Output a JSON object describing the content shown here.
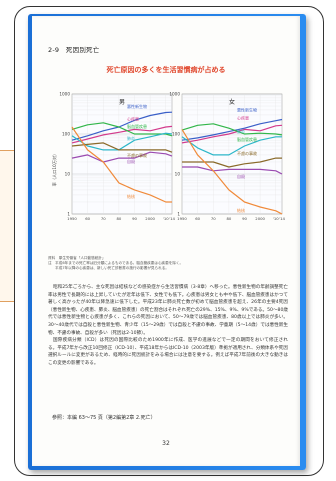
{
  "section_title": "2-9　死因別死亡",
  "chart_title": "死亡原因の多くを生活習慣病が占める",
  "chart_data": [
    {
      "type": "line",
      "title": "男",
      "x": [
        1950,
        1960,
        1970,
        1980,
        1990,
        2000,
        2010,
        2014
      ],
      "xticks": [
        "1950",
        "60",
        "70",
        "80",
        "90",
        "2000",
        "'10",
        "'14"
      ],
      "ylim": [
        1,
        1000
      ],
      "log_scale": true,
      "yticks": [
        "1000",
        "100",
        "10",
        "1"
      ],
      "ylabel": "率（人口10万対）",
      "series": [
        {
          "name": "悪性新生物",
          "color": "#3a5fc8",
          "values": [
            70,
            90,
            120,
            150,
            220,
            290,
            345,
            350
          ]
        },
        {
          "name": "心疾患",
          "color": "#d33a8c",
          "values": [
            60,
            75,
            95,
            110,
            130,
            120,
            150,
            155
          ]
        },
        {
          "name": "脳血管疾患",
          "color": "#32b64a",
          "values": [
            130,
            170,
            190,
            150,
            100,
            100,
            100,
            90
          ]
        },
        {
          "name": "肺炎",
          "color": "#2cb6c8",
          "values": [
            90,
            50,
            40,
            40,
            70,
            85,
            105,
            100
          ]
        },
        {
          "name": "不慮の事故",
          "color": "#8a6a2a",
          "values": [
            50,
            55,
            60,
            40,
            40,
            40,
            40,
            35
          ]
        },
        {
          "name": "自殺",
          "color": "#9a4ab0",
          "values": [
            25,
            30,
            20,
            25,
            25,
            35,
            32,
            28
          ]
        },
        {
          "name": "結核",
          "color": "#f08a3a",
          "values": [
            150,
            40,
            20,
            6,
            4,
            3,
            2,
            2
          ]
        }
      ]
    },
    {
      "type": "line",
      "title": "女",
      "x": [
        1950,
        1960,
        1970,
        1980,
        1990,
        2000,
        2010,
        2014
      ],
      "xticks": [
        "1950",
        "60",
        "70",
        "80",
        "90",
        "2000",
        "'10",
        "'14"
      ],
      "ylim": [
        1,
        1000
      ],
      "log_scale": true,
      "yticks": [
        "1000",
        "100",
        "10",
        "1"
      ],
      "series": [
        {
          "name": "悪性新生物",
          "color": "#3a5fc8",
          "values": [
            70,
            80,
            95,
            115,
            140,
            180,
            215,
            230
          ]
        },
        {
          "name": "心疾患",
          "color": "#d33a8c",
          "values": [
            60,
            70,
            85,
            100,
            130,
            120,
            160,
            165
          ]
        },
        {
          "name": "脳血管疾患",
          "color": "#32b64a",
          "values": [
            125,
            165,
            180,
            140,
            100,
            105,
            100,
            95
          ]
        },
        {
          "name": "肺炎",
          "color": "#2cb6c8",
          "values": [
            85,
            45,
            30,
            30,
            50,
            70,
            85,
            85
          ]
        },
        {
          "name": "不慮の事故",
          "color": "#8a6a2a",
          "values": [
            20,
            20,
            20,
            15,
            18,
            20,
            25,
            25
          ]
        },
        {
          "name": "自殺",
          "color": "#9a4ab0",
          "values": [
            15,
            15,
            12,
            13,
            13,
            13,
            12,
            10
          ]
        },
        {
          "name": "結核",
          "color": "#f08a3a",
          "values": [
            130,
            30,
            12,
            4,
            2,
            1.5,
            1.2,
            1
          ]
        }
      ]
    }
  ],
  "chart_labels_male": [
    "悪性新生物",
    "心疾患",
    "脳血管疾患",
    "肺炎",
    "不慮の事故",
    "自殺",
    "結核"
  ],
  "notes": [
    "資料　厚生労働省「人口動態統計」",
    "注　平成6年までの死亡率は旧分類によるものである。脳血管疾患は心疾患を除く。",
    "　　平成7年以降の心疾患は、新しい死亡診断書の施行の影響が見られる。"
  ],
  "body_paragraphs": [
    "昭和25年ごろから、主な死因は結核などの感染症から生活習慣病（3-8章）へ移った。悪性新生物の年齢調整死亡率は男性で長期的には上昇していたが近年は低下、女性でも低下。心疾患は男女とも中や低下、脳血管疾患はかつて著しく高かったが40年以降急速に低下した。平成23年に肺炎死亡数が初めて脳血管疾患を超え、26年の主要4死因（悪性新生物、心疾患、肺炎、脳血管疾患）の死亡割合はそれぞれ死亡の29%、15%、9%、9%である。50〜80歳代では悪性新生物と心疾患が多く、これらの死因において、50〜79歳では脳血管疾患、80歳以上では肺炎が多い。30〜40歳代では自殺と悪性新生物、青少年（15〜29歳）では自殺と不慮の事故、学童期（5〜14歳）では悪性新生物、不慮の事故、自殺が多い（死因は2-10節）。",
    "国際疾病分類（ICD）は死因の国際比較のため1900年に作成、医学の進展などで一定の期間をおいて修正される。平成7年から改正10回修正（ICD-10）、平成18年からはICD-10（2003年版）準拠が適用され、分類体系や死因選択ルールに変更があるため、経時的に死因統計をみる場合には注意を要する。例えば平成7年前後の大きな動きはこの変更の影響である。"
  ],
  "reference": "参照：本編 63〜75 頁（第2編第2章 2.死亡）",
  "page_number": "32"
}
